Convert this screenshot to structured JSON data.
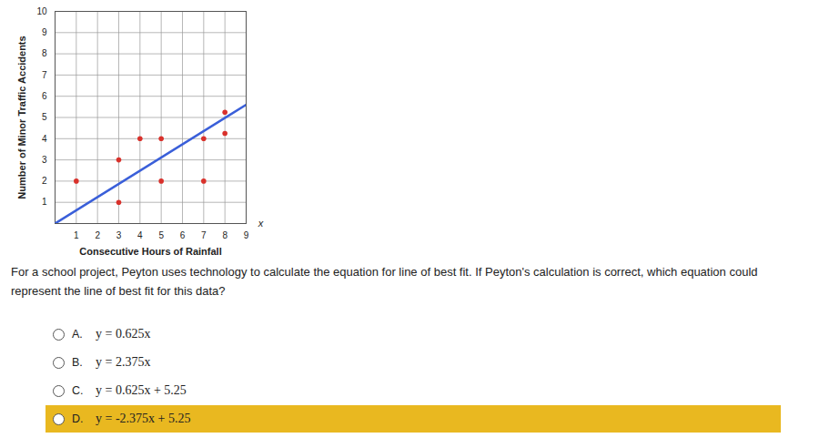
{
  "chart_data": {
    "type": "scatter",
    "x_label": "Consecutive Hours of Rainfall",
    "y_label": "Number of Minor Traffic Accidents",
    "annotations": [
      "x"
    ],
    "series": [
      {
        "name": "data",
        "type": "scatter",
        "color": "#d9312b",
        "marker": "circle",
        "x": [
          1,
          3,
          3,
          4,
          5,
          5,
          7,
          7,
          8,
          8
        ],
        "values": [
          2,
          3,
          1,
          4,
          4,
          2,
          4,
          2,
          5.25,
          4.25
        ]
      },
      {
        "name": "line of best fit",
        "type": "line",
        "color": "#3a5fd9",
        "line_style": "solid",
        "x": [
          0,
          9
        ],
        "values": [
          0,
          5.6
        ]
      }
    ],
    "xlim": [
      0,
      9
    ],
    "xticks": [
      1,
      2,
      3,
      4,
      5,
      6,
      7,
      8,
      9
    ],
    "ylim": [
      0,
      10
    ],
    "yticks": [
      1,
      2,
      3,
      4,
      5,
      6,
      7,
      8,
      9,
      10
    ],
    "grid": true
  },
  "question": "For a school project, Peyton uses technology to calculate the equation for line of best fit. If Peyton's calculation is correct, which equation could represent the line of best fit for this data?",
  "choices": [
    {
      "letter": "A.",
      "equation": "y = 0.625x"
    },
    {
      "letter": "B.",
      "equation": "y = 2.375x"
    },
    {
      "letter": "C.",
      "equation": "y = 0.625x + 5.25"
    },
    {
      "letter": "D.",
      "equation": "y = -2.375x + 5.25"
    }
  ],
  "selected": "D."
}
